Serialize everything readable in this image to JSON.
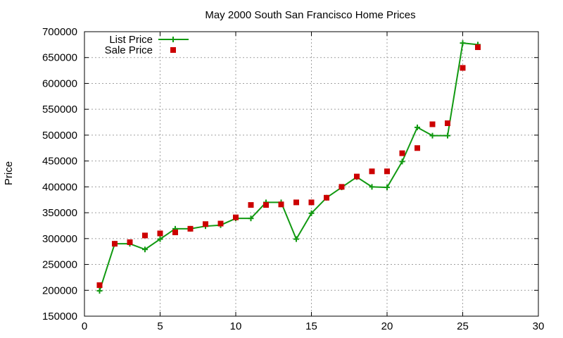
{
  "chart_data": {
    "type": "scatter",
    "title": "May 2000 South San Francisco Home Prices",
    "xlabel": "",
    "ylabel": "Price",
    "xlim": [
      0,
      30
    ],
    "ylim": [
      150000,
      700000
    ],
    "xticks": [
      0,
      5,
      10,
      15,
      20,
      25,
      30
    ],
    "yticks": [
      150000,
      200000,
      250000,
      300000,
      350000,
      400000,
      450000,
      500000,
      550000,
      600000,
      650000,
      700000
    ],
    "grid": true,
    "legend_position": "top-left",
    "series": [
      {
        "name": "List Price",
        "style": "line-points",
        "color": "#119911",
        "x": [
          1,
          2,
          3,
          4,
          5,
          6,
          7,
          8,
          9,
          10,
          11,
          12,
          13,
          14,
          15,
          16,
          17,
          18,
          19,
          20,
          21,
          22,
          23,
          24,
          25,
          26
        ],
        "y": [
          199000,
          290000,
          290000,
          279000,
          299000,
          319000,
          319000,
          324000,
          326000,
          339000,
          339000,
          370000,
          370000,
          299000,
          349000,
          379000,
          399000,
          419000,
          400000,
          399000,
          449000,
          515000,
          499000,
          499000,
          678000,
          675000
        ]
      },
      {
        "name": "Sale Price",
        "style": "points",
        "color": "#cc0000",
        "x": [
          1,
          2,
          3,
          4,
          5,
          6,
          7,
          8,
          9,
          10,
          11,
          12,
          13,
          14,
          15,
          16,
          17,
          18,
          19,
          20,
          21,
          22,
          23,
          24,
          25,
          26
        ],
        "y": [
          210000,
          290000,
          293000,
          306000,
          310000,
          312000,
          319000,
          328000,
          329000,
          341000,
          365000,
          365000,
          366000,
          370000,
          370000,
          379000,
          400000,
          420000,
          430000,
          430000,
          465000,
          475000,
          521000,
          523000,
          630000,
          670000
        ]
      }
    ]
  }
}
